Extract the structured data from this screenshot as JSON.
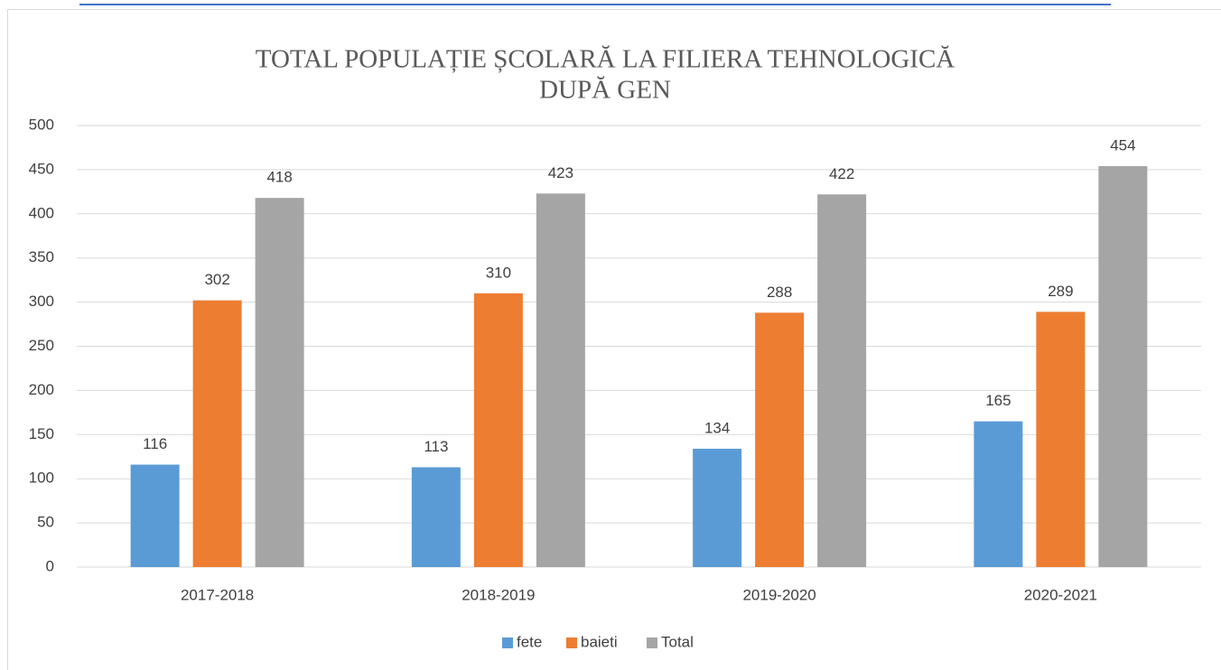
{
  "chart_data": {
    "type": "bar",
    "title": [
      "TOTAL POPULAȚIE ȘCOLARĂ LA FILIERA TEHNOLOGICĂ",
      "DUPĂ GEN"
    ],
    "categories": [
      "2017-2018",
      "2018-2019",
      "2019-2020",
      "2020-2021"
    ],
    "series": [
      {
        "name": "fete",
        "color": "#5b9bd5",
        "values": [
          116,
          113,
          134,
          165
        ]
      },
      {
        "name": "baieti",
        "color": "#ed7d31",
        "values": [
          302,
          310,
          288,
          289
        ]
      },
      {
        "name": "Total",
        "color": "#a5a5a5",
        "values": [
          418,
          423,
          422,
          454
        ]
      }
    ],
    "ylim": [
      0,
      500
    ],
    "yticks": [
      0,
      50,
      100,
      150,
      200,
      250,
      300,
      350,
      400,
      450,
      500
    ],
    "grid": true,
    "legend": "bottom"
  }
}
